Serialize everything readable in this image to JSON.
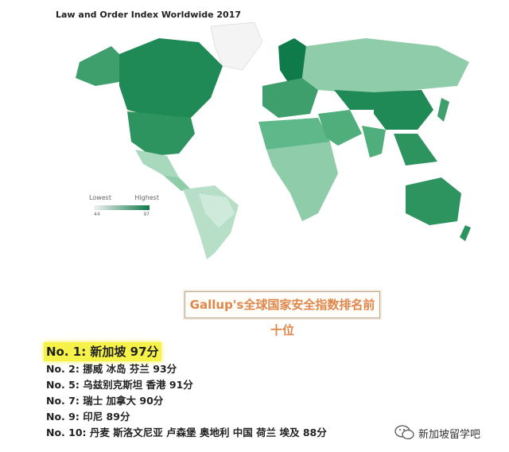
{
  "chart": {
    "title": "Law and Order Index Worldwide 2017",
    "legend": {
      "low_label": "Lowest",
      "high_label": "Highest",
      "min_value": "44",
      "max_value": "97"
    },
    "colors": {
      "low": "#f2f2f2",
      "high": "#0f7a4a",
      "mid": "#5fb88a",
      "light": "#a9d9bd"
    }
  },
  "banner": {
    "text": "Gallup's全球国家安全指数排名前十位"
  },
  "rankings": [
    "No. 1: 新加坡 97分",
    "No. 2: 挪威 冰岛 芬兰 93分",
    "No. 5: 乌兹别克斯坦 香港 91分",
    "No. 7: 瑞士 加拿大 90分",
    "No. 9: 印尼 89分",
    "No. 10: 丹麦 斯洛文尼亚 卢森堡 奥地利 中国 荷兰 埃及 88分"
  ],
  "watermark": {
    "icon": "wechat-icon",
    "text": "新加坡留学吧"
  }
}
